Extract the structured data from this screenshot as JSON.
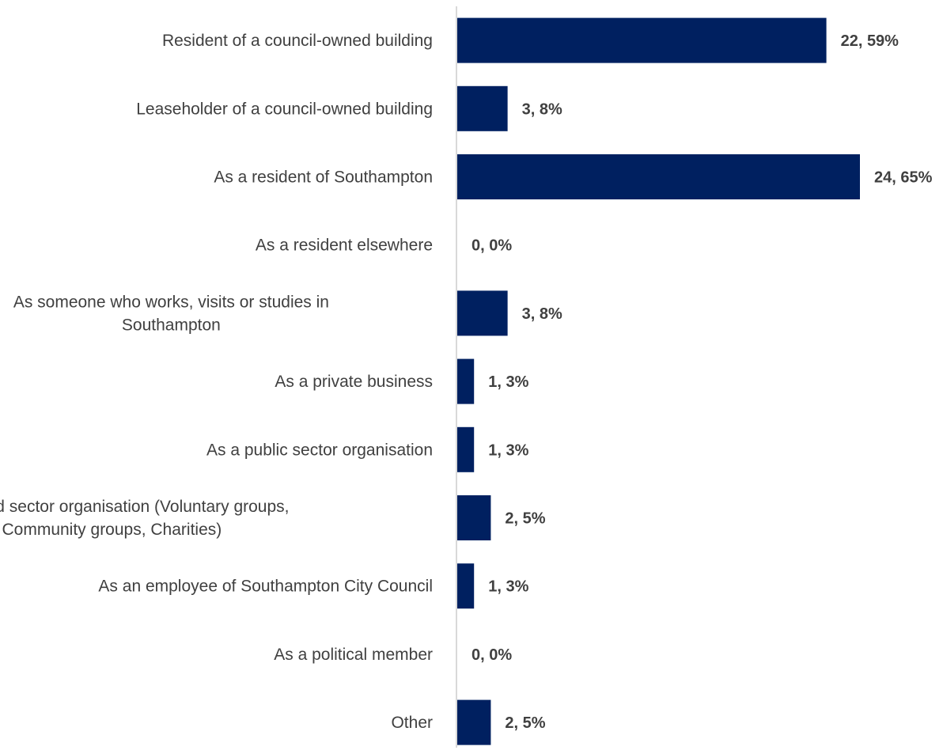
{
  "chart_data": {
    "type": "bar",
    "orientation": "horizontal",
    "title": "",
    "xlabel": "",
    "ylabel": "",
    "categories": [
      [
        "Resident of a council-owned building"
      ],
      [
        "Leaseholder of a council-owned building"
      ],
      [
        "As a resident of Southampton"
      ],
      [
        "As a resident elsewhere"
      ],
      [
        "As someone who works, visits or studies in",
        "Southampton"
      ],
      [
        "As a private business"
      ],
      [
        "As a public sector organisation"
      ],
      [
        "As a third sector organisation (Voluntary groups,",
        "Community groups, Charities)"
      ],
      [
        "As an employee of Southampton City Council"
      ],
      [
        "As a political member"
      ],
      [
        "Other"
      ]
    ],
    "values": [
      22,
      3,
      24,
      0,
      3,
      1,
      1,
      2,
      1,
      0,
      2
    ],
    "percentages": [
      59,
      8,
      65,
      0,
      8,
      3,
      3,
      5,
      3,
      0,
      5
    ],
    "data_labels": [
      "22, 59%",
      "3, 8%",
      "24, 65%",
      "0, 0%",
      "3, 8%",
      "1, 3%",
      "1, 3%",
      "2, 5%",
      "1, 3%",
      "0, 0%",
      "2, 5%"
    ],
    "xlim": [
      0,
      24
    ],
    "grid": false,
    "legend": "none",
    "colors": {
      "bar": "#002060",
      "axis": "#d9d9d9",
      "text": "#404040"
    }
  }
}
